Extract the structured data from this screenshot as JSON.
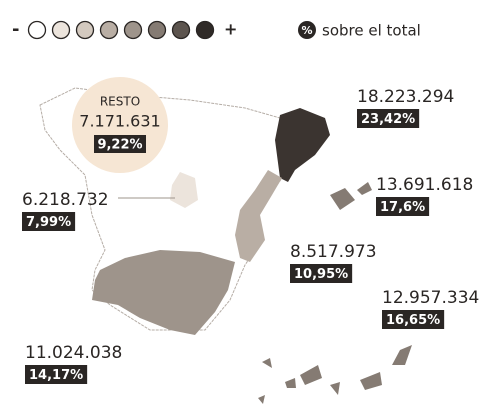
{
  "legend": {
    "low": "-",
    "high": "+",
    "icon": "%",
    "text": "sobre el total"
  },
  "resto": {
    "title": "RESTO",
    "amount": "7.171.631",
    "percent": "9,22%"
  },
  "regions": [
    {
      "amount": "18.223.294",
      "percent": "23,42%"
    },
    {
      "amount": "13.691.618",
      "percent": "17,6%"
    },
    {
      "amount": "6.218.732",
      "percent": "7,99%"
    },
    {
      "amount": "8.517.973",
      "percent": "10,95%"
    },
    {
      "amount": "12.957.334",
      "percent": "16,65%"
    },
    {
      "amount": "11.024.038",
      "percent": "14,17%"
    }
  ]
}
